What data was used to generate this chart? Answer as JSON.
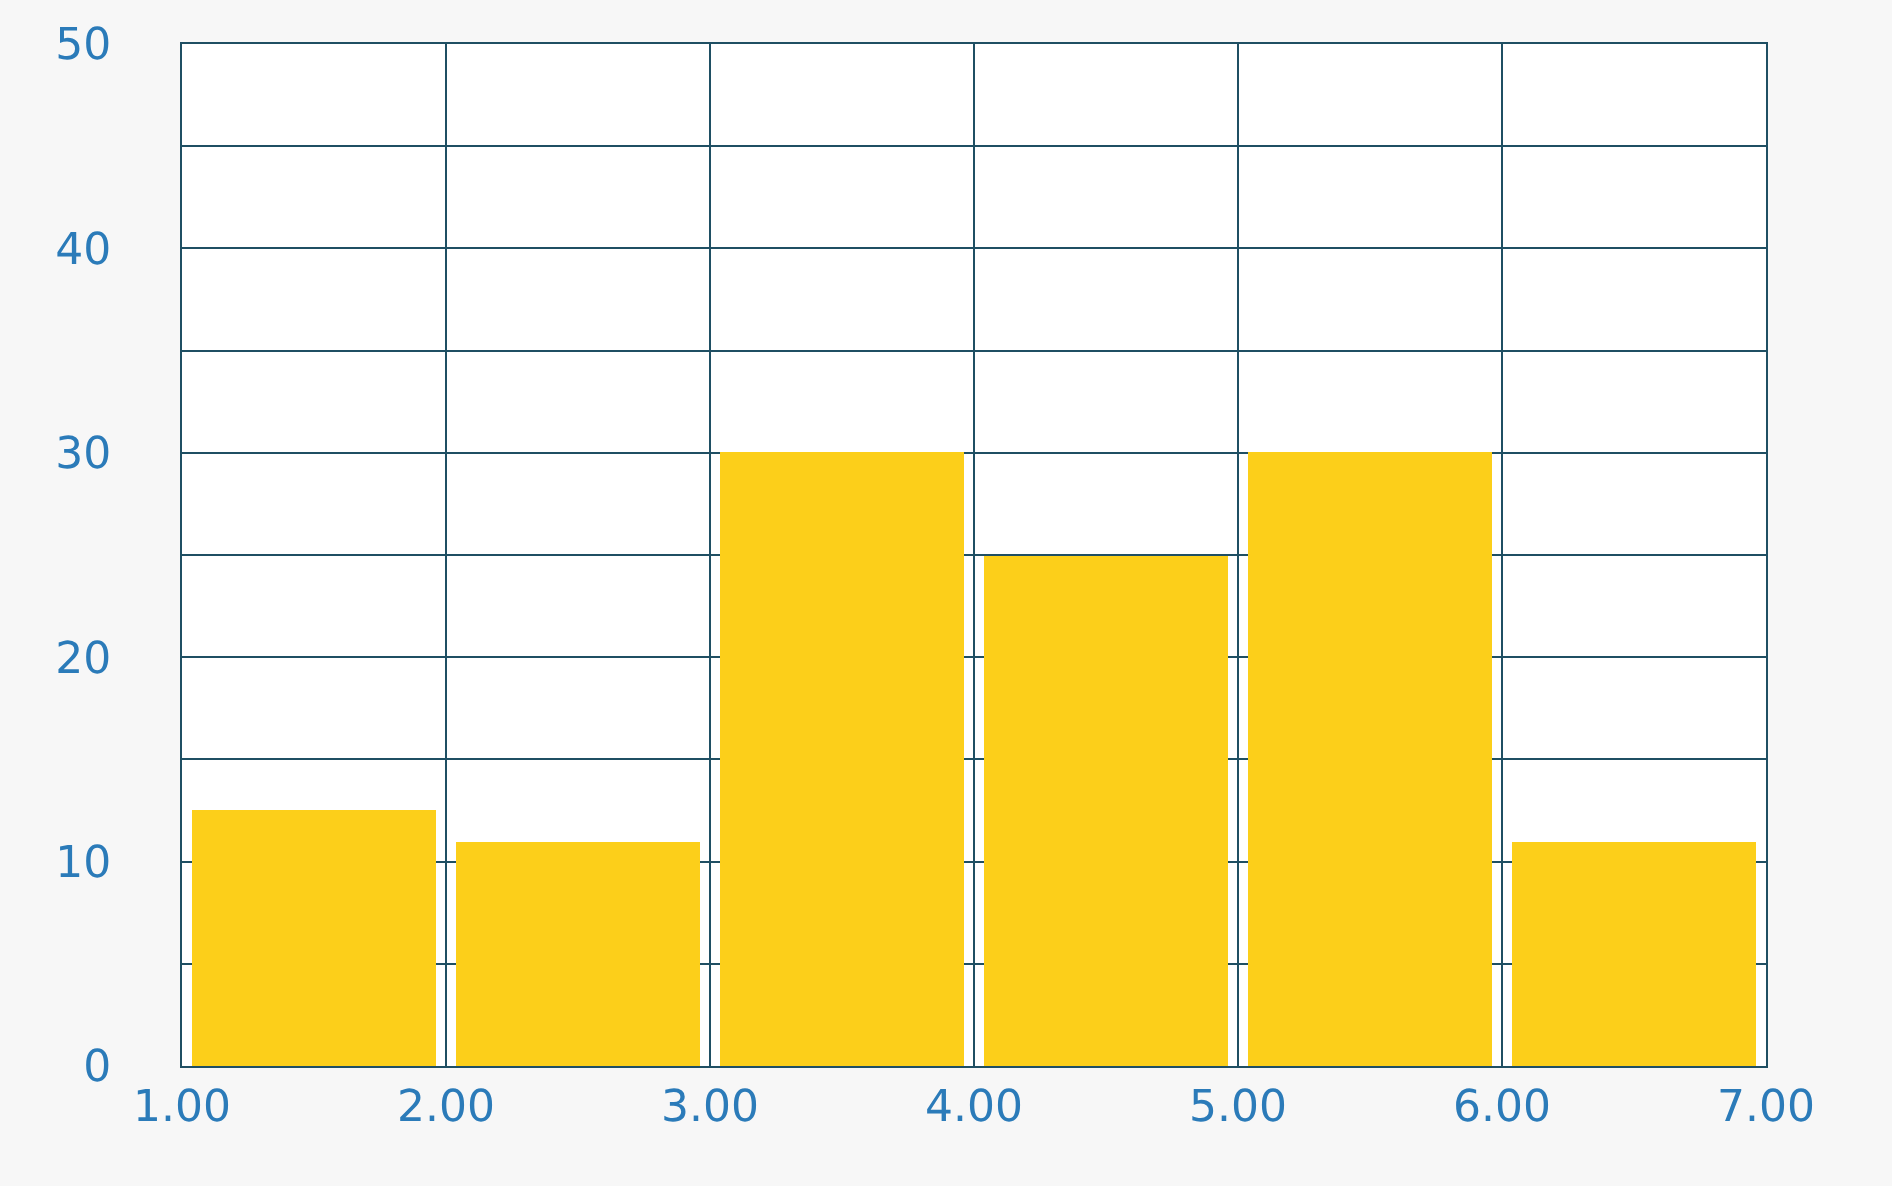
{
  "chart_data": {
    "type": "histogram",
    "bins": [
      1,
      2,
      3,
      4,
      5,
      6,
      7
    ],
    "values": [
      12.5,
      11,
      30,
      25,
      30,
      11
    ],
    "color": "#fccf1a",
    "xlim": [
      1,
      7
    ],
    "xticks": [
      {
        "value": 1,
        "label": "1.00"
      },
      {
        "value": 2,
        "label": "2.00"
      },
      {
        "value": 3,
        "label": "3.00"
      },
      {
        "value": 4,
        "label": "4.00"
      },
      {
        "value": 5,
        "label": "5.00"
      },
      {
        "value": 6,
        "label": "6.00"
      },
      {
        "value": 7,
        "label": "7.00"
      }
    ],
    "ylim": [
      0,
      50
    ],
    "yticks": [
      0,
      {
        "value": 5,
        "label": null
      },
      10,
      {
        "value": 15,
        "label": null
      },
      20,
      {
        "value": 25,
        "label": null
      },
      30,
      {
        "value": 35,
        "label": null
      },
      40,
      {
        "value": 45,
        "label": null
      },
      50
    ],
    "grid": true
  }
}
